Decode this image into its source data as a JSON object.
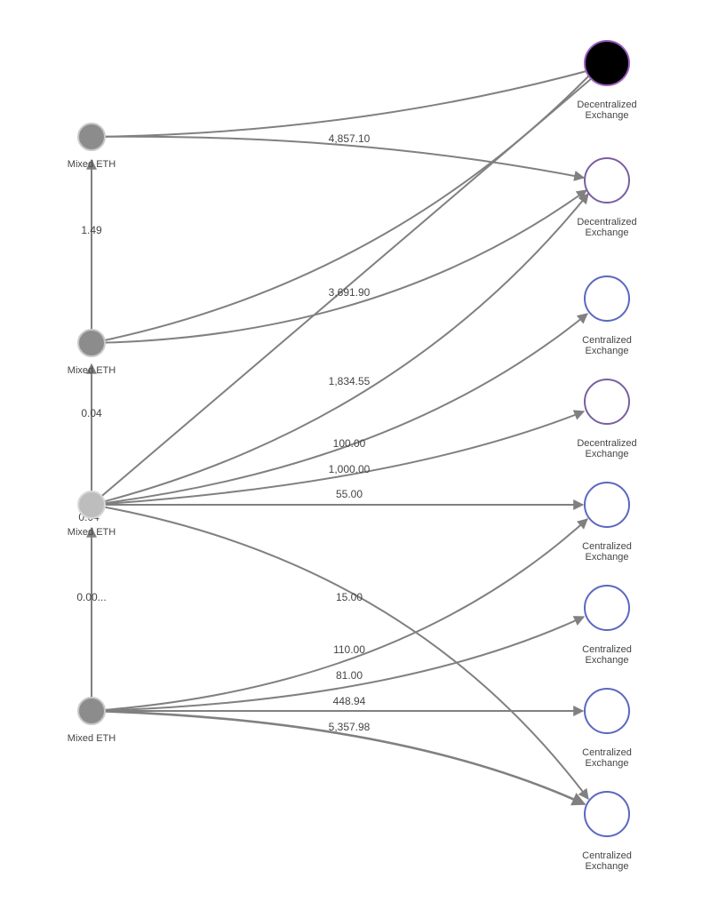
{
  "nodes": [
    {
      "label": [
        "Mixed ETH"
      ]
    },
    {
      "label": [
        "Mixed ETH"
      ]
    },
    {
      "label": [
        "Mixed ETH"
      ]
    },
    {
      "label": [
        "Mixed ETH"
      ]
    },
    {
      "label": [
        "Decentralized",
        "Exchange"
      ]
    },
    {
      "label": [
        "Decentralized",
        "Exchange"
      ]
    },
    {
      "label": [
        "Centralized",
        "Exchange"
      ]
    },
    {
      "label": [
        "Decentralized",
        "Exchange"
      ]
    },
    {
      "label": [
        "Centralized",
        "Exchange"
      ]
    },
    {
      "label": [
        "Centralized",
        "Exchange"
      ]
    },
    {
      "label": [
        "Centralized",
        "Exchange"
      ]
    },
    {
      "label": [
        "Centralized",
        "Exchange"
      ]
    }
  ],
  "edge_labels": [
    "4,857.10",
    "1.49",
    "3,691.90",
    "0.04",
    "1,834.55",
    "100.00",
    "1,000.00",
    "55.00",
    "0.04",
    "0.00...",
    "15.00",
    "110.00",
    "81.00",
    "448.94",
    "5,357.98"
  ]
}
